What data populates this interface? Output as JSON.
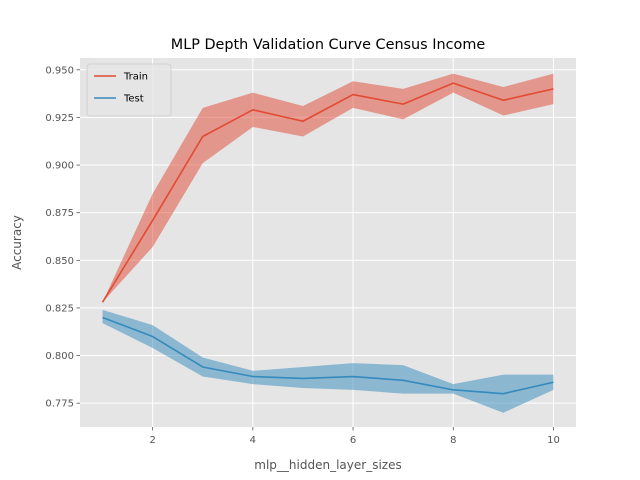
{
  "chart_data": {
    "type": "line",
    "title": "MLP Depth Validation Curve Census Income",
    "xlabel": "mlp__hidden_layer_sizes",
    "ylabel": "Accuracy",
    "x": [
      1,
      2,
      3,
      4,
      5,
      6,
      7,
      8,
      9,
      10
    ],
    "xlim": [
      0.55,
      10.45
    ],
    "ylim": [
      0.7625,
      0.9562
    ],
    "xticks": [
      2,
      4,
      6,
      8,
      10
    ],
    "yticks": [
      0.775,
      0.8,
      0.825,
      0.85,
      0.875,
      0.9,
      0.925,
      0.95
    ],
    "ytick_labels": [
      "0.775",
      "0.800",
      "0.825",
      "0.850",
      "0.875",
      "0.900",
      "0.925",
      "0.950"
    ],
    "grid": true,
    "legend_position": "top-left",
    "series": [
      {
        "name": "Train",
        "color": "#E24A33",
        "values": [
          0.828,
          0.871,
          0.915,
          0.929,
          0.923,
          0.937,
          0.932,
          0.943,
          0.934,
          0.94
        ],
        "band_lower": [
          0.828,
          0.857,
          0.901,
          0.92,
          0.915,
          0.93,
          0.924,
          0.938,
          0.926,
          0.932
        ],
        "band_upper": [
          0.828,
          0.885,
          0.93,
          0.938,
          0.931,
          0.944,
          0.94,
          0.948,
          0.941,
          0.948
        ]
      },
      {
        "name": "Test",
        "color": "#348ABD",
        "values": [
          0.82,
          0.81,
          0.794,
          0.789,
          0.788,
          0.789,
          0.787,
          0.782,
          0.78,
          0.786
        ],
        "band_lower": [
          0.817,
          0.804,
          0.789,
          0.785,
          0.783,
          0.782,
          0.78,
          0.78,
          0.77,
          0.782
        ],
        "band_upper": [
          0.824,
          0.816,
          0.799,
          0.792,
          0.794,
          0.796,
          0.795,
          0.785,
          0.79,
          0.79
        ]
      }
    ]
  }
}
